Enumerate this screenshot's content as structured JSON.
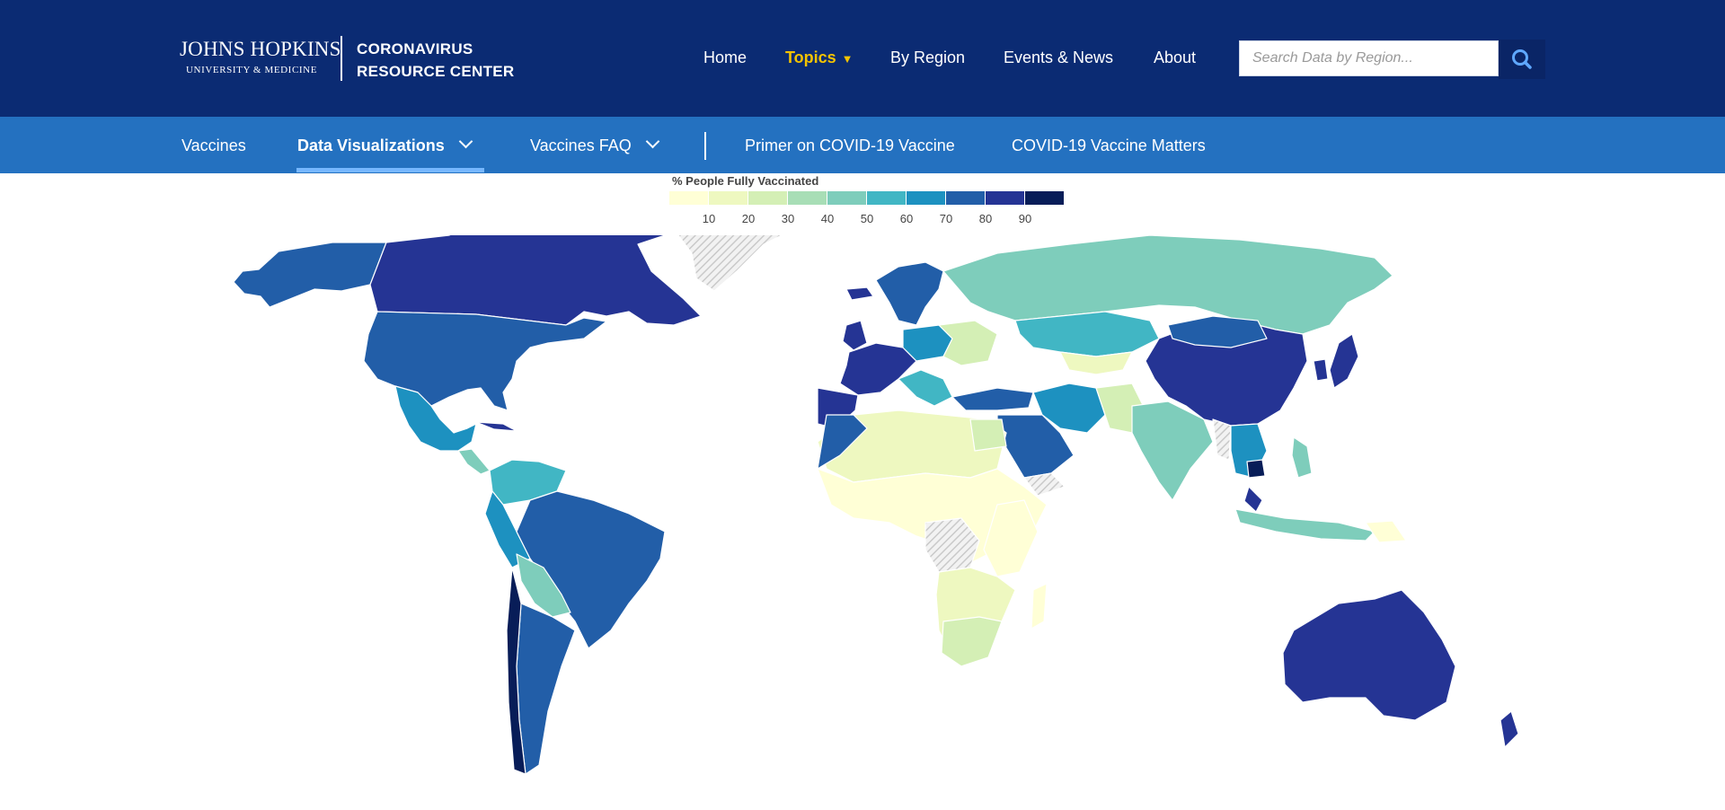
{
  "header": {
    "logo": {
      "main": "JOHNS HOPKINS",
      "sub": "UNIVERSITY & MEDICINE"
    },
    "resource_center": {
      "line1": "CORONAVIRUS",
      "line2": "RESOURCE CENTER"
    },
    "nav": [
      {
        "label": "Home",
        "active": false
      },
      {
        "label": "Topics",
        "active": true,
        "caret": "▼"
      },
      {
        "label": "By Region",
        "active": false
      },
      {
        "label": "Events & News",
        "active": false
      },
      {
        "label": "About",
        "active": false
      }
    ],
    "search": {
      "placeholder": "Search Data by Region...",
      "icon": "search-icon"
    }
  },
  "subnav": {
    "items": [
      {
        "label": "Vaccines",
        "active": false,
        "dropdown": false
      },
      {
        "label": "Data Visualizations",
        "active": true,
        "dropdown": true
      },
      {
        "label": "Vaccines FAQ",
        "active": false,
        "dropdown": true
      },
      {
        "label": "Primer on COVID-19 Vaccine",
        "active": false,
        "dropdown": false
      },
      {
        "label": "COVID-19 Vaccine Matters",
        "active": false,
        "dropdown": false
      }
    ]
  },
  "legend": {
    "title": "% People Fully Vaccinated",
    "ticks": [
      "10",
      "20",
      "30",
      "40",
      "50",
      "60",
      "70",
      "80",
      "90"
    ],
    "colors": [
      "#ffffd6",
      "#eef8c0",
      "#d4efb5",
      "#a8deb6",
      "#7ecdbb",
      "#41b6c4",
      "#1d91c0",
      "#225ea8",
      "#253494",
      "#081d58"
    ]
  },
  "colors": {
    "header_bg": "#0b2b73",
    "subnav_bg": "#2471c0",
    "accent_yellow": "#f3c300",
    "underline": "#76b7ff",
    "no_data_hatch": "#d9d9d9"
  }
}
